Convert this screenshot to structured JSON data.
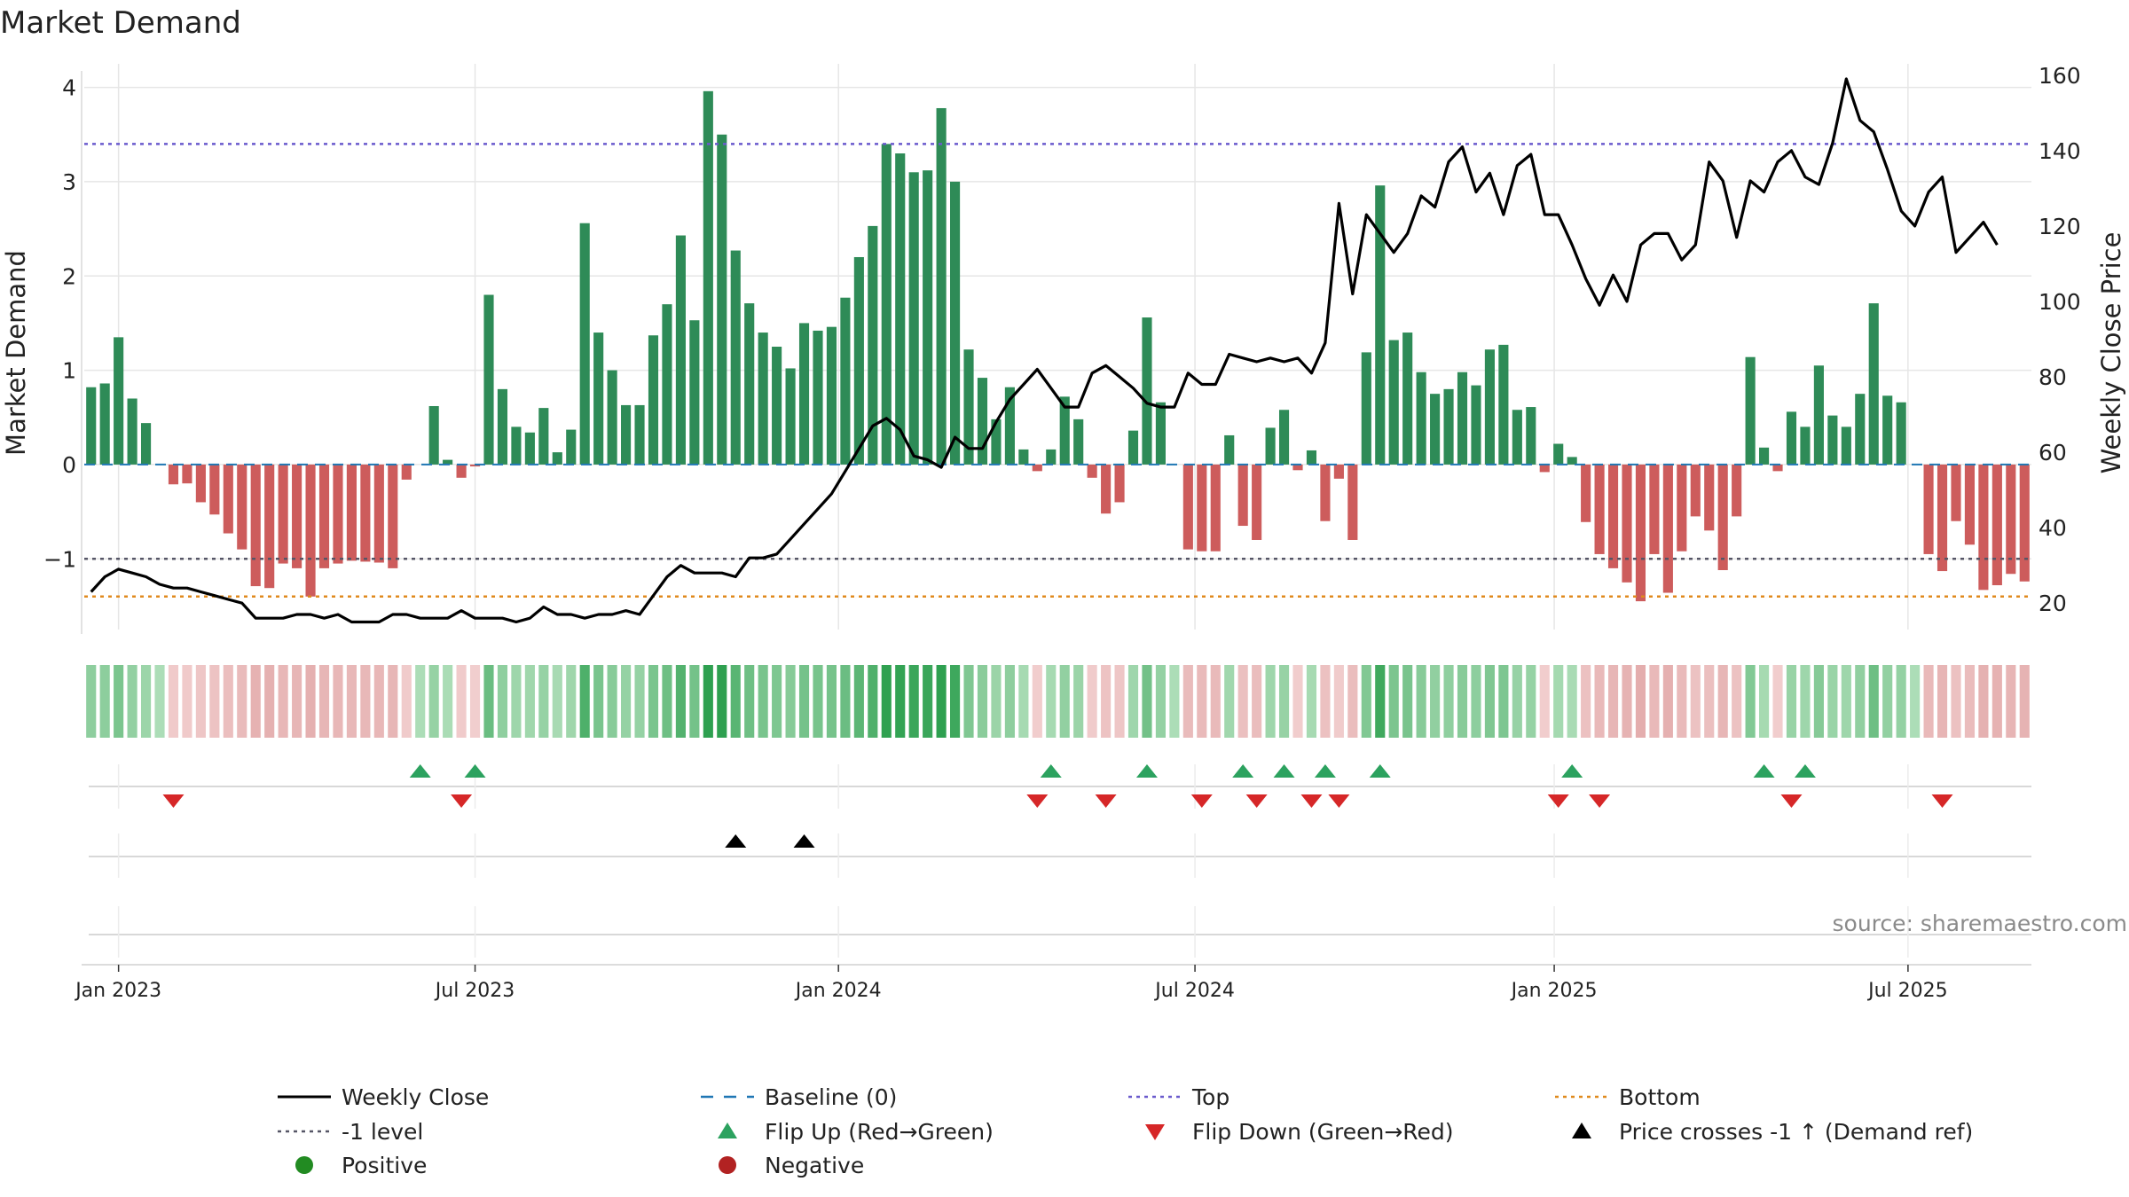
{
  "chart_data": {
    "type": "bar",
    "title": "Market Demand",
    "ylabel_left": "Market Demand",
    "ylabel_right": "Weekly Close Price",
    "ylim_left": [
      -1.75,
      4.25
    ],
    "ylim_right": [
      13,
      163
    ],
    "yticks_left": [
      4,
      3,
      2,
      1,
      0,
      -1
    ],
    "yticks_left_labels": [
      "4",
      "3",
      "2",
      "1",
      "0",
      "−1"
    ],
    "yticks_right": [
      160,
      140,
      120,
      100,
      80,
      60,
      40,
      20
    ],
    "top_level": 3.4,
    "minus1_level": -1,
    "bottom_level": -1.4,
    "x_ticks": [
      {
        "label": "Jan 2023",
        "week": 2
      },
      {
        "label": "Jul 2023",
        "week": 28
      },
      {
        "label": "Jan 2024",
        "week": 54.5
      },
      {
        "label": "Jul 2024",
        "week": 80.5
      },
      {
        "label": "Jan 2025",
        "week": 106.7
      },
      {
        "label": "Jul 2025",
        "week": 132.5
      }
    ],
    "demand": [
      0.82,
      0.86,
      1.35,
      0.7,
      0.44,
      0,
      -0.21,
      -0.2,
      -0.4,
      -0.53,
      -0.73,
      -0.9,
      -1.29,
      -1.31,
      -1.05,
      -1.1,
      -1.4,
      -1.1,
      -1.05,
      -1.02,
      -1.03,
      -1.04,
      -1.1,
      -0.16,
      0,
      0.62,
      0.05,
      -0.14,
      -0.02,
      1.8,
      0.8,
      0.4,
      0.34,
      0.6,
      0.13,
      0.37,
      2.56,
      1.4,
      1.0,
      0.63,
      0.63,
      1.37,
      1.7,
      2.43,
      1.53,
      3.96,
      3.5,
      2.27,
      1.71,
      1.4,
      1.25,
      1.02,
      1.5,
      1.42,
      1.46,
      1.77,
      2.2,
      2.53,
      3.4,
      3.3,
      3.1,
      3.12,
      3.78,
      3.0,
      1.22,
      0.92,
      0.48,
      0.82,
      0.16,
      -0.07,
      0.16,
      0.72,
      0.48,
      -0.14,
      -0.52,
      -0.4,
      0.36,
      1.56,
      0.66,
      0,
      -0.9,
      -0.92,
      -0.92,
      0.31,
      -0.65,
      -0.8,
      0.39,
      0.58,
      -0.06,
      0.15,
      -0.6,
      -0.15,
      -0.8,
      1.19,
      2.96,
      1.32,
      1.4,
      0.98,
      0.75,
      0.8,
      0.98,
      0.84,
      1.22,
      1.27,
      0.58,
      0.61,
      -0.08,
      0.22,
      0.08,
      -0.61,
      -0.95,
      -1.1,
      -1.25,
      -1.45,
      -0.95,
      -1.36,
      -0.92,
      -0.55,
      -0.7,
      -1.12,
      -0.55,
      1.14,
      0.18,
      -0.07,
      0.56,
      0.4,
      1.05,
      0.52,
      0.4,
      0.75,
      1.71,
      0.73,
      0.66,
      0,
      -0.95,
      -1.13,
      -0.6,
      -0.85,
      -1.33,
      -1.28,
      -1.16,
      -1.24
    ],
    "price": [
      23,
      27,
      29,
      28,
      27,
      25,
      24,
      24,
      23,
      22,
      21,
      20,
      16,
      16,
      16,
      17,
      17,
      16,
      17,
      15,
      15,
      15,
      17,
      17,
      16,
      16,
      16,
      18,
      16,
      16,
      16,
      15,
      16,
      19,
      17,
      17,
      16,
      17,
      17,
      18,
      17,
      22,
      27,
      30,
      28,
      28,
      28,
      27,
      32,
      32,
      33,
      37,
      41,
      45,
      49,
      55,
      61,
      67,
      69,
      66,
      59,
      58,
      56,
      64,
      61,
      61,
      68,
      74,
      78,
      82,
      77,
      72,
      72,
      81,
      83,
      80,
      77,
      73,
      72,
      72,
      81,
      78,
      78,
      86,
      85,
      84,
      85,
      84,
      85,
      81,
      89,
      126,
      102,
      123,
      118,
      113,
      118,
      128,
      125,
      137,
      141,
      129,
      134,
      123,
      136,
      139,
      123,
      123,
      115,
      106,
      99,
      107,
      100,
      115,
      118,
      118,
      111,
      115,
      137,
      132,
      117,
      132,
      129,
      137,
      140,
      133,
      131,
      142,
      159,
      148,
      145,
      135,
      124,
      120,
      129,
      133,
      113,
      117,
      121,
      115
    ],
    "flip_up_weeks": [
      24,
      28,
      70,
      77,
      84,
      87,
      90,
      94,
      108,
      122,
      125
    ],
    "flip_down_weeks": [
      6,
      27,
      69,
      74,
      81,
      85,
      89,
      91,
      107,
      110,
      124,
      135
    ],
    "price_cross_weeks": [
      47,
      52
    ],
    "legend": [
      {
        "label": "Weekly Close",
        "kind": "solid-line",
        "color": "#000000"
      },
      {
        "label": "Baseline (0)",
        "kind": "dashed-line",
        "color": "#1f77b4"
      },
      {
        "label": "Top",
        "kind": "dotted-line",
        "color": "#6a5acd"
      },
      {
        "label": "Bottom",
        "kind": "dotted-line",
        "color": "#e08a1e"
      },
      {
        "label": "-1 level",
        "kind": "dotted-line",
        "color": "#555566"
      },
      {
        "label": "Flip Up (Red→Green)",
        "kind": "triangle-up",
        "color": "#2ca25f"
      },
      {
        "label": "Flip Down (Green→Red)",
        "kind": "triangle-down",
        "color": "#d62728"
      },
      {
        "label": "Price crosses -1 ↑ (Demand ref)",
        "kind": "triangle-up",
        "color": "#000000"
      },
      {
        "label": "Positive",
        "kind": "circle",
        "color": "#228b22"
      },
      {
        "label": "Negative",
        "kind": "circle",
        "color": "#b22222"
      }
    ],
    "source": "source: sharemaestro.com"
  },
  "colors": {
    "positive_bar": "#2e8b57",
    "negative_bar": "#cd5c5c",
    "grid": "#e6e6e6",
    "text": "#222222"
  }
}
